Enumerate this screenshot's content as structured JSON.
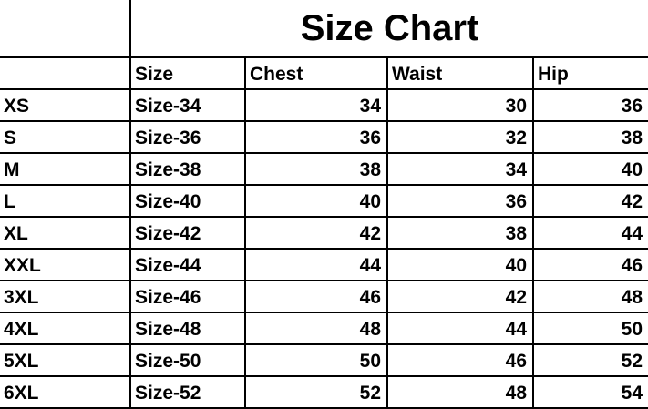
{
  "title": "Size Chart",
  "headers": [
    "",
    "Size",
    "Chest",
    "Waist",
    "Hip"
  ],
  "rows": [
    {
      "label": "XS",
      "size": "Size-34",
      "chest": "34",
      "waist": "30",
      "hip": "36"
    },
    {
      "label": "S",
      "size": "Size-36",
      "chest": "36",
      "waist": "32",
      "hip": "38"
    },
    {
      "label": "M",
      "size": "Size-38",
      "chest": "38",
      "waist": "34",
      "hip": "40"
    },
    {
      "label": "L",
      "size": "Size-40",
      "chest": "40",
      "waist": "36",
      "hip": "42"
    },
    {
      "label": "XL",
      "size": "Size-42",
      "chest": "42",
      "waist": "38",
      "hip": "44"
    },
    {
      "label": "XXL",
      "size": "Size-44",
      "chest": "44",
      "waist": "40",
      "hip": "46"
    },
    {
      "label": "3XL",
      "size": "Size-46",
      "chest": "46",
      "waist": "42",
      "hip": "48"
    },
    {
      "label": "4XL",
      "size": "Size-48",
      "chest": "48",
      "waist": "44",
      "hip": "50"
    },
    {
      "label": "5XL",
      "size": "Size-50",
      "chest": "50",
      "waist": "46",
      "hip": "52"
    },
    {
      "label": "6XL",
      "size": "Size-52",
      "chest": "52",
      "waist": "48",
      "hip": "54"
    }
  ]
}
